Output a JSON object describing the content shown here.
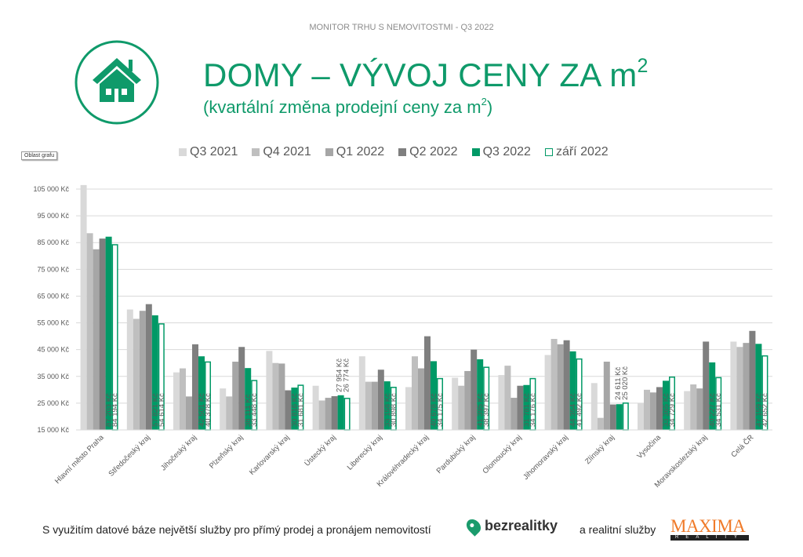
{
  "header": {
    "top_label": "MONITOR TRHU S NEMOVITOSTMI - Q3 2022",
    "title": "DOMY – VÝVOJ CENY ZA m",
    "title_sup": "2",
    "subtitle": "(kvartální změna prodejní ceny za m",
    "subtitle_sup": "2",
    "subtitle_end": ")",
    "icon": "house-icon"
  },
  "tooltip": "Oblast grafu",
  "chart_data": {
    "type": "bar",
    "title": "DOMY – VÝVOJ CENY ZA m2",
    "xlabel": "",
    "ylabel": "",
    "ylim": [
      15000,
      105000
    ],
    "yticks": [
      15000,
      25000,
      35000,
      45000,
      55000,
      65000,
      75000,
      85000,
      95000,
      105000
    ],
    "ytick_labels": [
      "15 000 Kč",
      "25 000 Kč",
      "35 000 Kč",
      "45 000 Kč",
      "55 000 Kč",
      "65 000 Kč",
      "75 000 Kč",
      "85 000 Kč",
      "95 000 Kč",
      "105 000 Kč"
    ],
    "grid": true,
    "legend_position": "top",
    "categories": [
      "Hlavní město Praha",
      "Středočeský kraj",
      "Jihočeský kraj",
      "Plzeňský kraj",
      "Karlovarský kraj",
      "Ústecký kraj",
      "Liberecký kraj",
      "Královéhradecký kraj",
      "Pardubický kraj",
      "Olomoucký kraj",
      "Jihomoravský kraj",
      "Zlínský kraj",
      "Vysočina",
      "Moravskoslezský kraj",
      "Celá ČR"
    ],
    "series": [
      {
        "name": "Q3 2021",
        "color": "#d9d9d9",
        "values": [
          106500,
          60000,
          36500,
          30500,
          44500,
          31500,
          42500,
          31000,
          34500,
          35500,
          43000,
          32500,
          25000,
          29500,
          48000
        ]
      },
      {
        "name": "Q4 2021",
        "color": "#bfbfbf",
        "values": [
          88500,
          56500,
          38000,
          27500,
          40000,
          26000,
          33000,
          42500,
          31500,
          39000,
          49000,
          19500,
          30000,
          32000,
          46000
        ]
      },
      {
        "name": "Q1 2022",
        "color": "#a6a6a6",
        "values": [
          82500,
          59500,
          27500,
          40500,
          39800,
          27000,
          33000,
          38000,
          37000,
          27000,
          47000,
          40500,
          29000,
          30500,
          47500
        ]
      },
      {
        "name": "Q2 2022",
        "color": "#7f7f7f",
        "values": [
          86500,
          62000,
          47000,
          46000,
          29800,
          27600,
          37500,
          50000,
          45000,
          31500,
          48500,
          24500,
          31000,
          48000,
          52000
        ]
      },
      {
        "name": "Q3 2022",
        "color": "#009966",
        "values": [
          87203,
          57821,
          42501,
          38111,
          30816,
          27954,
          33158,
          40678,
          41395,
          31781,
          44354,
          24611,
          33365,
          40227,
          47159
        ],
        "labels": [
          "87 203 Kč",
          "57 821 Kč",
          "42 501 Kč",
          "38 111 Kč",
          "30 816 Kč",
          "27 954 Kč",
          "33 158 Kč",
          "40 678 Kč",
          "41 395 Kč",
          "31 781 Kč",
          "44 354 Kč",
          "24 611 Kč",
          "33 365 Kč",
          "40 227 Kč",
          "47 159 Kč"
        ]
      },
      {
        "name": "září 2022",
        "color": "#ffffff",
        "border": "#009966",
        "values": [
          84194,
          54614,
          40378,
          33448,
          31681,
          26774,
          30898,
          34175,
          38397,
          34176,
          41492,
          25020,
          34729,
          34531,
          42652
        ],
        "labels": [
          "84 194 Kč",
          "54 614 Kč",
          "40 378 Kč",
          "33 448 Kč",
          "31 681 Kč",
          "26 774 Kč",
          "30 898 Kč",
          "34 175 Kč",
          "38 397 Kč",
          "34 176 Kč",
          "41 492 Kč",
          "25 020 Kč",
          "34 729 Kč",
          "34 531 Kč",
          "42 652 Kč"
        ]
      }
    ]
  },
  "footer": {
    "text": "S využitím datové báze největší služby pro přímý prodej a pronájem nemovitostí",
    "brand1": "bezrealitky",
    "connector": "a realitní služby",
    "brand2": "MAXIMA",
    "brand2_sub": "REALITY"
  }
}
